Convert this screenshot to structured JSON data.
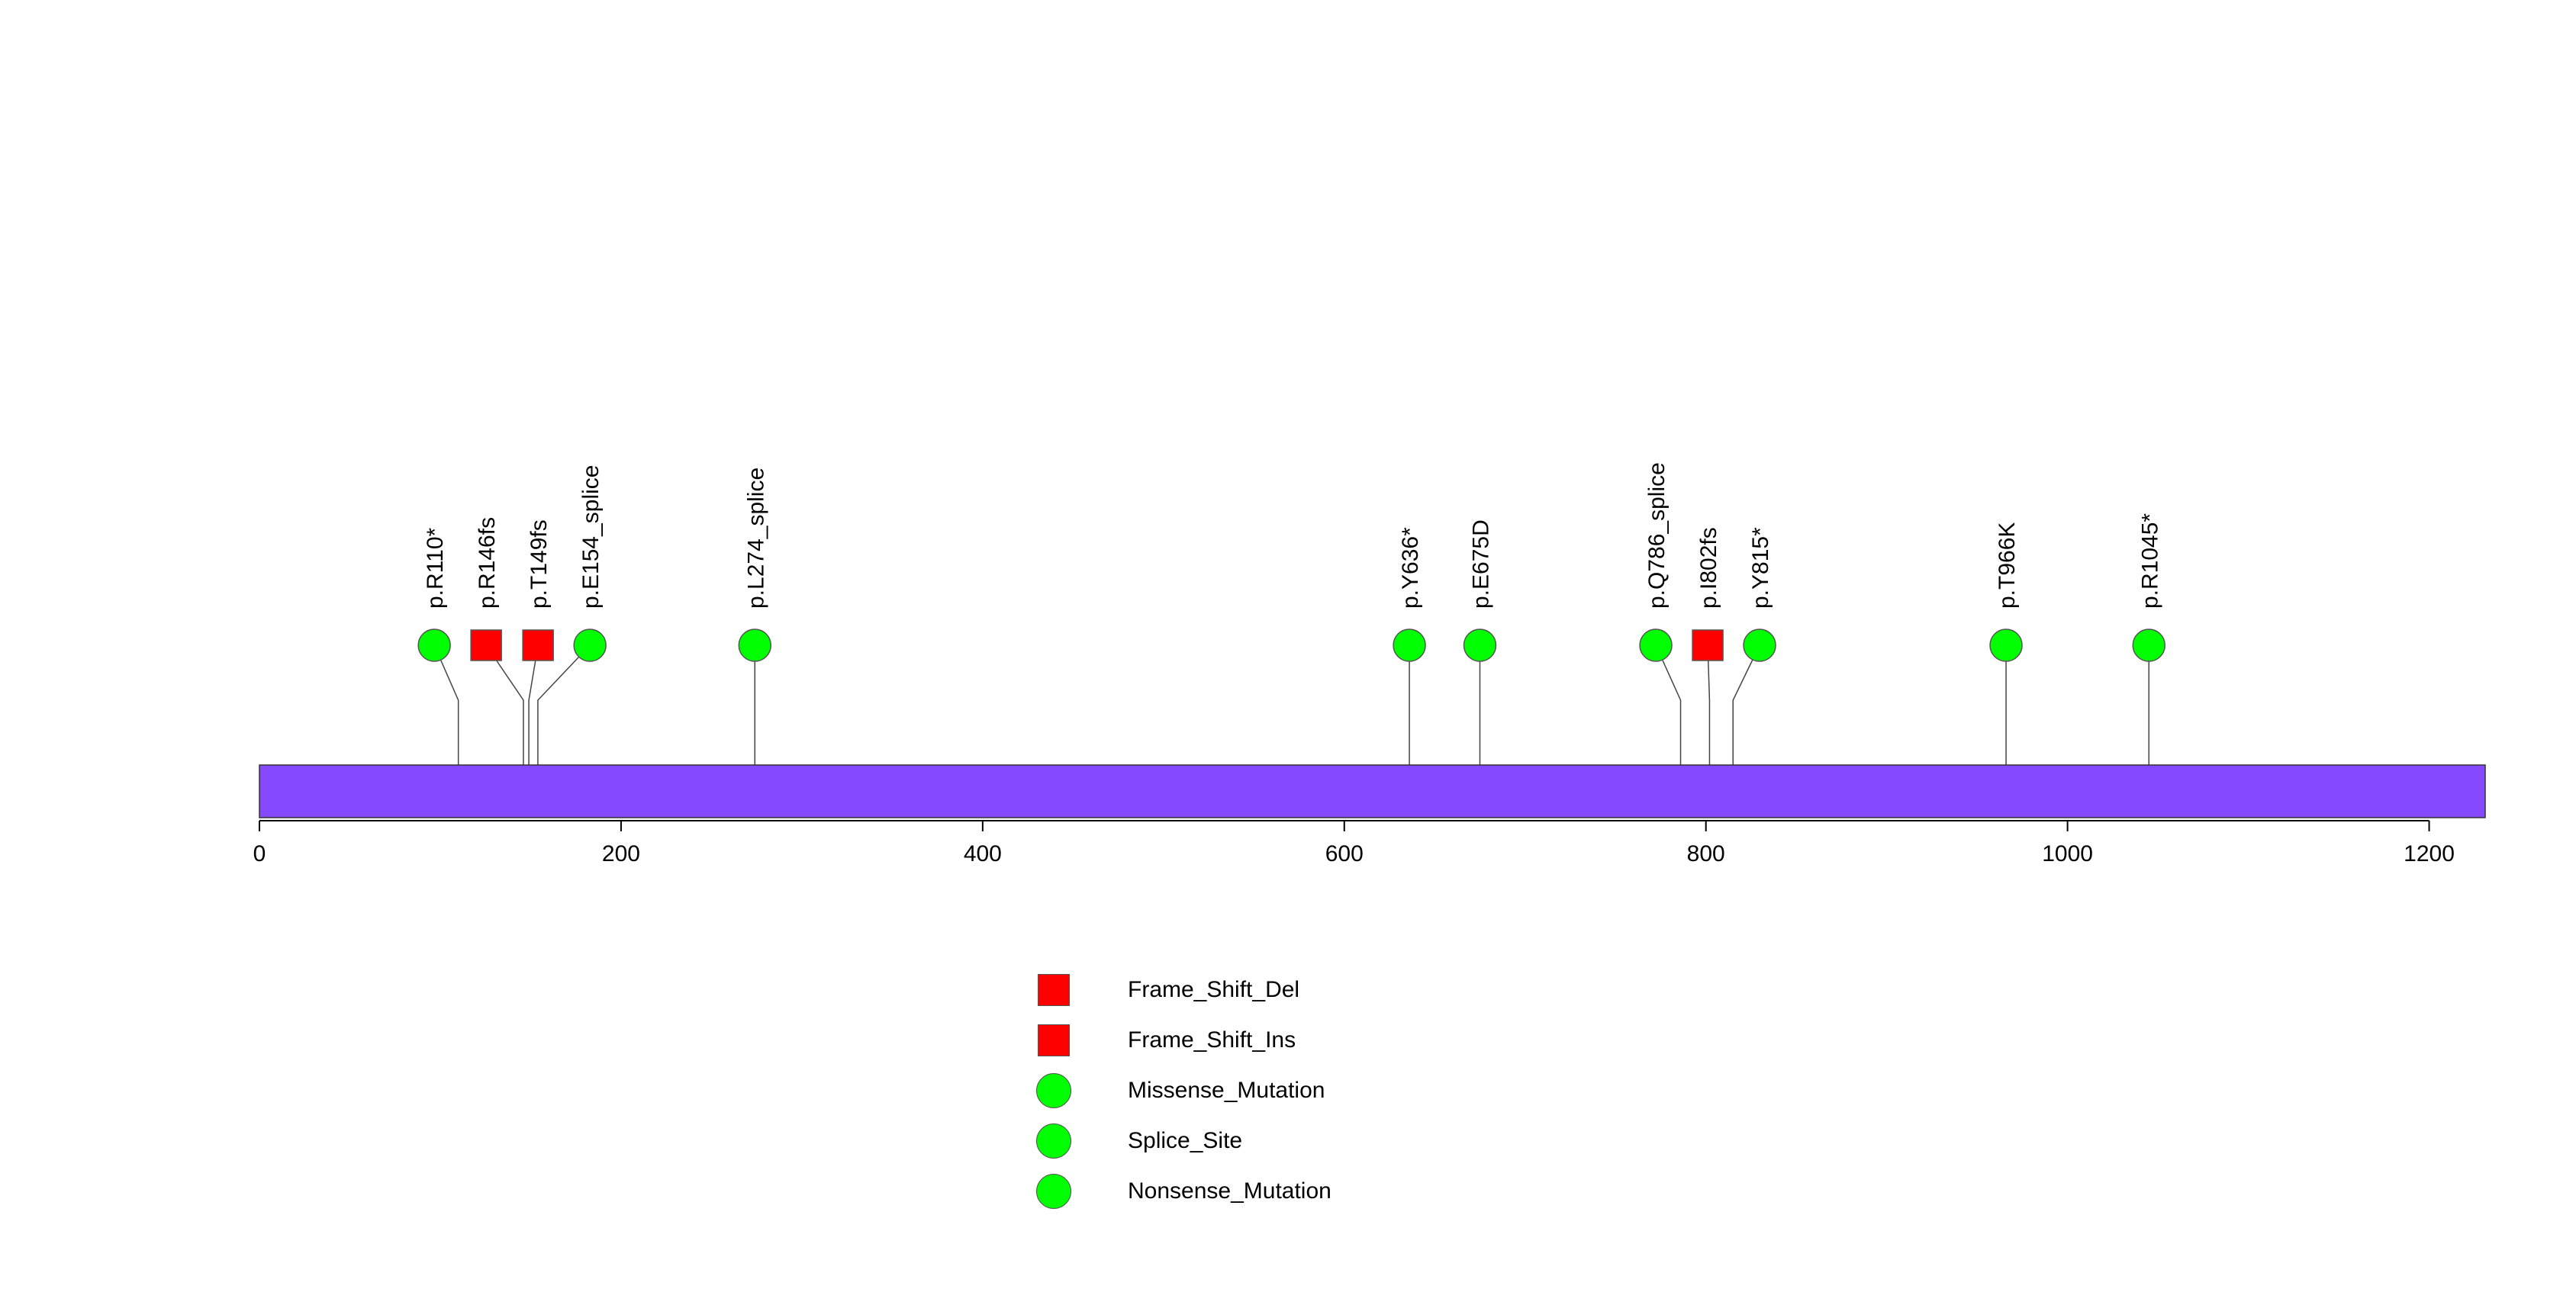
{
  "chart_data": {
    "type": "lollipop",
    "title": "",
    "xlabel": "",
    "ylabel": "",
    "protein_length": 1231,
    "xlim": [
      0,
      1231
    ],
    "x_ticks": [
      0,
      200,
      400,
      600,
      800,
      1000,
      1200
    ],
    "x_tick_labels": [
      "0",
      "200",
      "400",
      "600",
      "800",
      "1000",
      "1200"
    ],
    "bar_color": "#8549ff",
    "mutations": [
      {
        "label": "p.R110*",
        "position": 110,
        "type": "Nonsense_Mutation"
      },
      {
        "label": "p.R146fs",
        "position": 146,
        "type": "Frame_Shift_Del"
      },
      {
        "label": "p.T149fs",
        "position": 149,
        "type": "Frame_Shift_Ins"
      },
      {
        "label": "p.E154_splice",
        "position": 154,
        "type": "Splice_Site"
      },
      {
        "label": "p.L274_splice",
        "position": 274,
        "type": "Splice_Site"
      },
      {
        "label": "p.Y636*",
        "position": 636,
        "type": "Nonsense_Mutation"
      },
      {
        "label": "p.E675D",
        "position": 675,
        "type": "Missense_Mutation"
      },
      {
        "label": "p.Q786_splice",
        "position": 786,
        "type": "Splice_Site"
      },
      {
        "label": "p.I802fs",
        "position": 802,
        "type": "Frame_Shift_Del"
      },
      {
        "label": "p.Y815*",
        "position": 815,
        "type": "Nonsense_Mutation"
      },
      {
        "label": "p.T966K",
        "position": 966,
        "type": "Missense_Mutation"
      },
      {
        "label": "p.R1045*",
        "position": 1045,
        "type": "Nonsense_Mutation"
      }
    ],
    "legend": [
      {
        "label": "Frame_Shift_Del",
        "shape": "square",
        "color": "#ff0000"
      },
      {
        "label": "Frame_Shift_Ins",
        "shape": "square",
        "color": "#ff0000"
      },
      {
        "label": "Missense_Mutation",
        "shape": "circle",
        "color": "#00ff00"
      },
      {
        "label": "Splice_Site",
        "shape": "circle",
        "color": "#00ff00"
      },
      {
        "label": "Nonsense_Mutation",
        "shape": "circle",
        "color": "#00ff00"
      }
    ]
  }
}
